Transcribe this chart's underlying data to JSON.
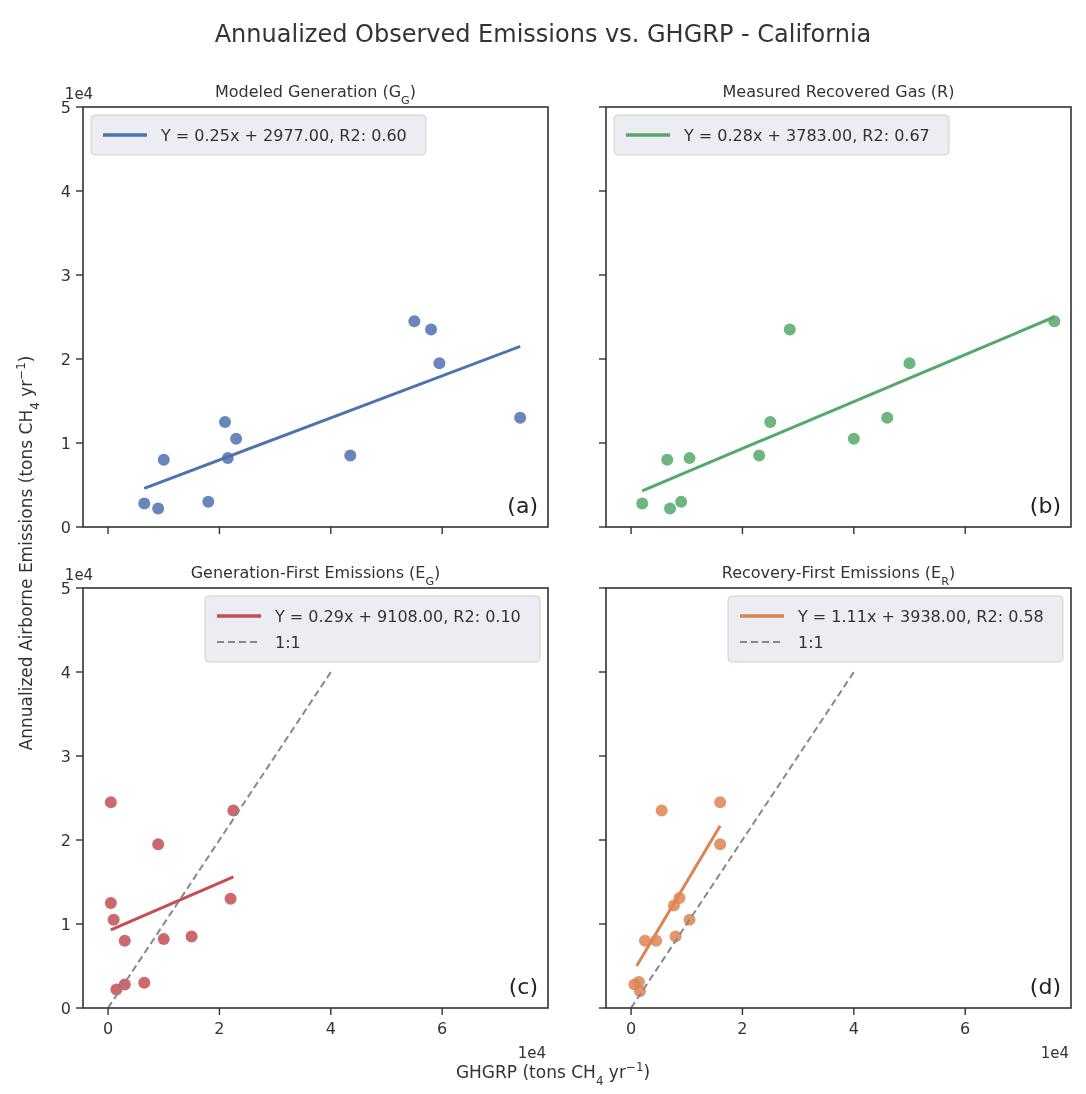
{
  "chart_data": [
    {
      "type": "scatter",
      "title": "Annualized Observed Emissions vs. GHGRP - California",
      "subtitle": "Modeled Generation (G$_{G}$)",
      "ylabel": "Annualized Airborne Emissions (tons CH$_{4}$ yr$^{−1}$)",
      "xlim": [
        -0.45,
        7.9
      ],
      "ylim": [
        0,
        5
      ],
      "xticks": [
        0,
        2,
        4,
        6
      ],
      "yticks": [
        0,
        1,
        2,
        3,
        4,
        5
      ],
      "tick_labels": "y",
      "legend": "top left",
      "annotations": [
        "(a)",
        "1e4"
      ],
      "series": [
        {
          "color": "#4c72b0",
          "marker": "circle",
          "x": [
            0.65,
            0.9,
            1.0,
            1.8,
            2.1,
            2.15,
            2.3,
            4.35,
            5.5,
            5.8,
            5.95,
            7.4
          ],
          "values": [
            0.28,
            0.22,
            0.8,
            0.3,
            1.25,
            0.82,
            1.05,
            0.85,
            2.45,
            2.35,
            1.95,
            1.3
          ]
        },
        {
          "type": "line",
          "name": "Y = 0.25x + 2977.00, R2: 0.60",
          "color": "#4c72b0",
          "line_style": "solid",
          "x": [
            0.65,
            7.4
          ],
          "values": [
            0.46,
            2.15
          ]
        }
      ]
    },
    {
      "type": "scatter",
      "subtitle": "Measured Recovered Gas (R)",
      "xlim": [
        -0.45,
        7.9
      ],
      "ylim": [
        0,
        5
      ],
      "xticks": [
        0,
        2,
        4,
        6
      ],
      "yticks": [
        0,
        1,
        2,
        3,
        4,
        5
      ],
      "tick_labels": false,
      "legend": "top left",
      "annotations": [
        "(b)"
      ],
      "series": [
        {
          "color": "#55a868",
          "marker": "circle",
          "x": [
            0.2,
            0.7,
            0.65,
            0.9,
            1.05,
            2.3,
            2.5,
            2.85,
            4.0,
            4.6,
            5.0,
            7.6
          ],
          "values": [
            0.28,
            0.22,
            0.8,
            0.3,
            0.82,
            0.85,
            1.25,
            2.35,
            1.05,
            1.3,
            1.95,
            2.45
          ]
        },
        {
          "type": "line",
          "name": "Y = 0.28x + 3783.00, R2: 0.67",
          "color": "#55a868",
          "line_style": "solid",
          "x": [
            0.2,
            7.6
          ],
          "values": [
            0.43,
            2.5
          ]
        }
      ]
    },
    {
      "type": "scatter",
      "subtitle": "Generation-First Emissions (E$_{G}$)",
      "xlabel": "GHGRP (tons CH$_{4}$ yr$^{−1}$)",
      "xlim": [
        -0.45,
        7.9
      ],
      "ylim": [
        0,
        5
      ],
      "xticks": [
        0,
        2,
        4,
        6
      ],
      "yticks": [
        0,
        1,
        2,
        3,
        4,
        5
      ],
      "legend": "top right",
      "annotations": [
        "(c)",
        "1e4",
        "1e4"
      ],
      "series": [
        {
          "color": "#c44e52",
          "marker": "circle",
          "x": [
            0.05,
            0.05,
            0.1,
            0.15,
            0.3,
            0.3,
            0.65,
            0.9,
            1.0,
            1.5,
            2.2,
            2.25
          ],
          "values": [
            2.45,
            1.25,
            1.05,
            0.22,
            0.8,
            0.28,
            0.3,
            1.95,
            0.82,
            0.85,
            1.3,
            2.35
          ]
        },
        {
          "type": "line",
          "name": "Y = 0.29x + 9108.00, R2: 0.10",
          "color": "#c44e52",
          "line_style": "solid",
          "x": [
            0.05,
            2.25
          ],
          "values": [
            0.93,
            1.56
          ]
        },
        {
          "type": "line",
          "name": "1:1",
          "color": "#888888",
          "line_style": "dashed",
          "x": [
            0,
            4
          ],
          "values": [
            0,
            4
          ]
        }
      ]
    },
    {
      "type": "scatter",
      "subtitle": "Recovery-First Emissions (E$_{R}$)",
      "xlim": [
        -0.45,
        7.9
      ],
      "ylim": [
        0,
        5
      ],
      "xticks": [
        0,
        2,
        4,
        6
      ],
      "yticks": [
        0,
        1,
        2,
        3,
        4,
        5
      ],
      "tick_labels": "x",
      "legend": "top right",
      "annotations": [
        "(d)",
        "1e4"
      ],
      "series": [
        {
          "color": "#dd8452",
          "marker": "circle",
          "x": [
            0.06,
            0.16,
            0.14,
            0.25,
            0.45,
            0.55,
            0.8,
            0.77,
            0.87,
            1.05,
            1.6,
            1.6
          ],
          "values": [
            0.28,
            0.2,
            0.31,
            0.8,
            0.8,
            2.35,
            0.85,
            1.22,
            1.31,
            1.05,
            2.45,
            1.95
          ]
        },
        {
          "type": "line",
          "name": "Y = 1.11x + 3938.00, R2: 0.58",
          "color": "#dd8452",
          "line_style": "solid",
          "x": [
            0.1,
            1.6
          ],
          "values": [
            0.5,
            2.17
          ]
        },
        {
          "type": "line",
          "name": "1:1",
          "color": "#888888",
          "line_style": "dashed",
          "x": [
            0,
            4
          ],
          "values": [
            0,
            4
          ]
        }
      ]
    }
  ]
}
